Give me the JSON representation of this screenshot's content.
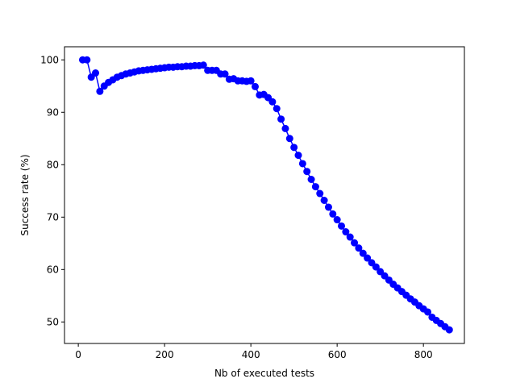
{
  "chart_data": {
    "type": "line",
    "xlabel": "Nb of executed tests",
    "ylabel": "Success rate (%)",
    "x": [
      10,
      20,
      30,
      40,
      50,
      60,
      70,
      80,
      90,
      100,
      110,
      120,
      130,
      140,
      150,
      160,
      170,
      180,
      190,
      200,
      210,
      220,
      230,
      240,
      250,
      260,
      270,
      280,
      290,
      300,
      310,
      320,
      330,
      340,
      350,
      360,
      370,
      380,
      390,
      400,
      410,
      420,
      430,
      440,
      450,
      460,
      470,
      480,
      490,
      500,
      510,
      520,
      530,
      540,
      550,
      560,
      570,
      580,
      590,
      600,
      610,
      620,
      630,
      640,
      650,
      660,
      670,
      680,
      690,
      700,
      710,
      720,
      730,
      740,
      750,
      760,
      770,
      780,
      790,
      800,
      810,
      820,
      830,
      840,
      850,
      860
    ],
    "series": [
      {
        "color": "#0000ff",
        "values": [
          100,
          100,
          96.7,
          97.5,
          94,
          95,
          95.7,
          96.2,
          96.7,
          97,
          97.3,
          97.5,
          97.7,
          97.9,
          98,
          98.1,
          98.2,
          98.3,
          98.4,
          98.5,
          98.6,
          98.6,
          98.7,
          98.7,
          98.8,
          98.8,
          98.9,
          98.9,
          99,
          98,
          98,
          98,
          97.3,
          97.3,
          96.3,
          96.4,
          96,
          96,
          95.9,
          96,
          94.9,
          93.3,
          93.4,
          92.8,
          92,
          90.7,
          88.7,
          86.9,
          85,
          83.3,
          81.8,
          80.2,
          78.7,
          77.2,
          75.8,
          74.5,
          73.2,
          71.9,
          70.6,
          69.5,
          68.3,
          67.2,
          66.2,
          65.1,
          64.1,
          63.1,
          62.2,
          61.3,
          60.5,
          59.6,
          58.8,
          58,
          57.2,
          56.5,
          55.8,
          55.1,
          54.4,
          53.8,
          53.1,
          52.5,
          51.9,
          50.9,
          50.3,
          49.7,
          49.1,
          48.5
        ]
      }
    ],
    "xlim": [
      -32,
      895
    ],
    "ylim": [
      45.9,
      102.5
    ],
    "xticks": [
      0,
      200,
      400,
      600,
      800
    ],
    "yticks": [
      50,
      60,
      70,
      80,
      90,
      100
    ]
  }
}
